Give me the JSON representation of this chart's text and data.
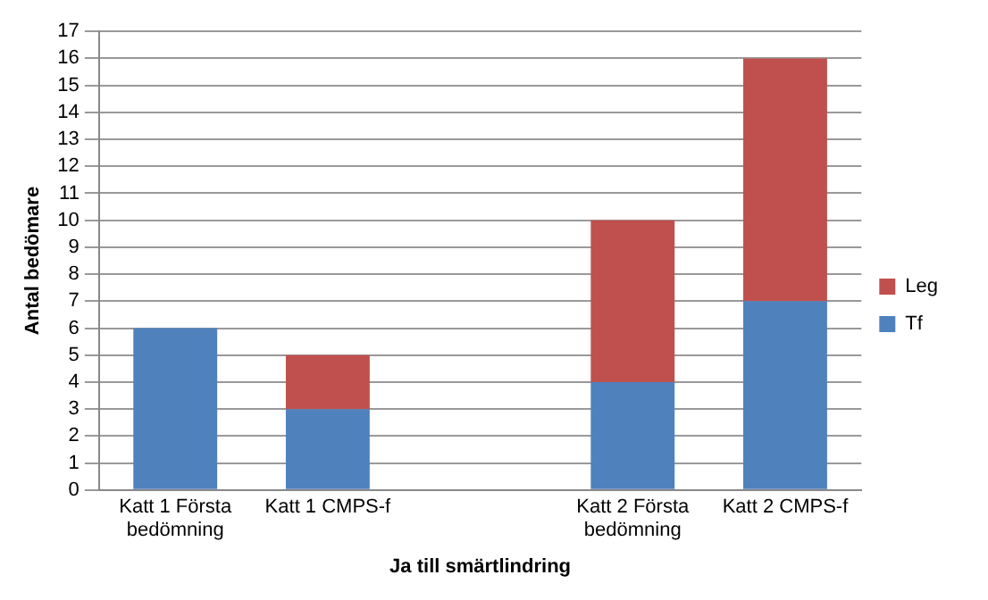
{
  "chart_data": {
    "type": "bar",
    "stacked": true,
    "xlabel": "Ja till smärtlindring",
    "ylabel": "Antal bedömare",
    "categories": [
      "Katt 1 Första bedömning",
      "Katt 1 CMPS-f",
      null,
      "Katt 2 Första bedömning",
      "Katt 2 CMPS-f"
    ],
    "series": [
      {
        "name": "Tf",
        "color": "#4f81bd",
        "values": [
          6,
          3,
          null,
          4,
          7
        ]
      },
      {
        "name": "Leg",
        "color": "#c0504d",
        "values": [
          0,
          2,
          null,
          6,
          9
        ]
      }
    ],
    "ylim": [
      0,
      17
    ],
    "yticks": [
      0,
      1,
      2,
      3,
      4,
      5,
      6,
      7,
      8,
      9,
      10,
      11,
      12,
      13,
      14,
      15,
      16,
      17
    ],
    "grid": "y",
    "legend": "right"
  }
}
